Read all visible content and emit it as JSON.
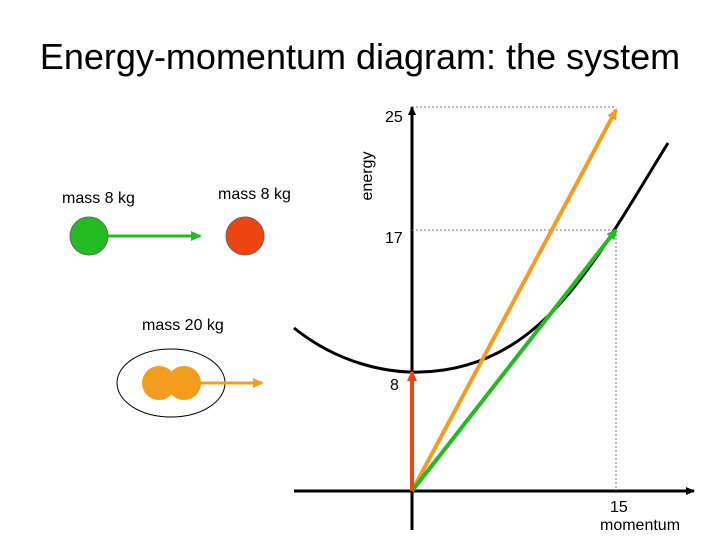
{
  "title": "Energy-momentum diagram: the system",
  "particles": {
    "left_label": "mass 8 kg",
    "right_label": "mass 8 kg",
    "system_label": "mass 20 kg"
  },
  "axes": {
    "energy_label": "energy",
    "momentum_label": "momentum",
    "momentum_tick": "15",
    "energy_ticks": [
      "25",
      "17",
      "8"
    ]
  },
  "colors": {
    "green": "#22bb22",
    "red": "#ee4411",
    "orange": "#f39c1e",
    "black": "#000000"
  }
}
